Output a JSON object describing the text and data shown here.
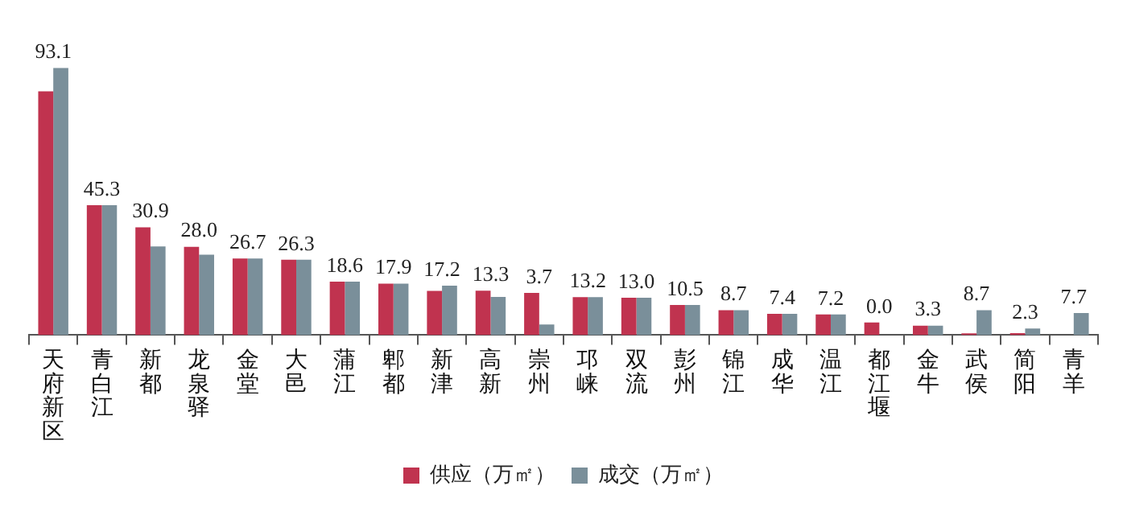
{
  "chart_data": {
    "type": "bar",
    "categories": [
      "天府新区",
      "青白江",
      "新都",
      "龙泉驿",
      "金堂",
      "大邑",
      "蒲江",
      "郫都",
      "新津",
      "高新",
      "崇州",
      "邛崃",
      "双流",
      "彭州",
      "锦江",
      "成华",
      "温江",
      "都江堰",
      "金牛",
      "武侯",
      "简阳",
      "青羊"
    ],
    "series": [
      {
        "name": "供应（万㎡）",
        "color": "#c0334f",
        "values": [
          85.0,
          45.3,
          37.6,
          30.8,
          26.7,
          26.3,
          18.6,
          17.9,
          15.4,
          15.5,
          14.7,
          13.2,
          13.0,
          10.5,
          8.7,
          7.4,
          7.2,
          4.4,
          3.3,
          0.6,
          0.7,
          0
        ]
      },
      {
        "name": "成交（万㎡）",
        "color": "#7a8f9a",
        "values": [
          93.1,
          45.3,
          30.9,
          28.0,
          26.7,
          26.3,
          18.6,
          17.9,
          17.2,
          13.3,
          3.7,
          13.2,
          13.0,
          10.5,
          8.7,
          7.4,
          7.2,
          0.0,
          3.3,
          8.7,
          2.3,
          7.7
        ],
        "value_labels": [
          "93.1",
          "45.3",
          "30.9",
          "28.0",
          "26.7",
          "26.3",
          "18.6",
          "17.9",
          "17.2",
          "13.3",
          "3.7",
          "13.2",
          "13.0",
          "10.5",
          "8.7",
          "7.4",
          "7.2",
          "0.0",
          "3.3",
          "8.7",
          "2.3",
          "7.7"
        ]
      }
    ],
    "legend": "bottom",
    "grid": false
  }
}
